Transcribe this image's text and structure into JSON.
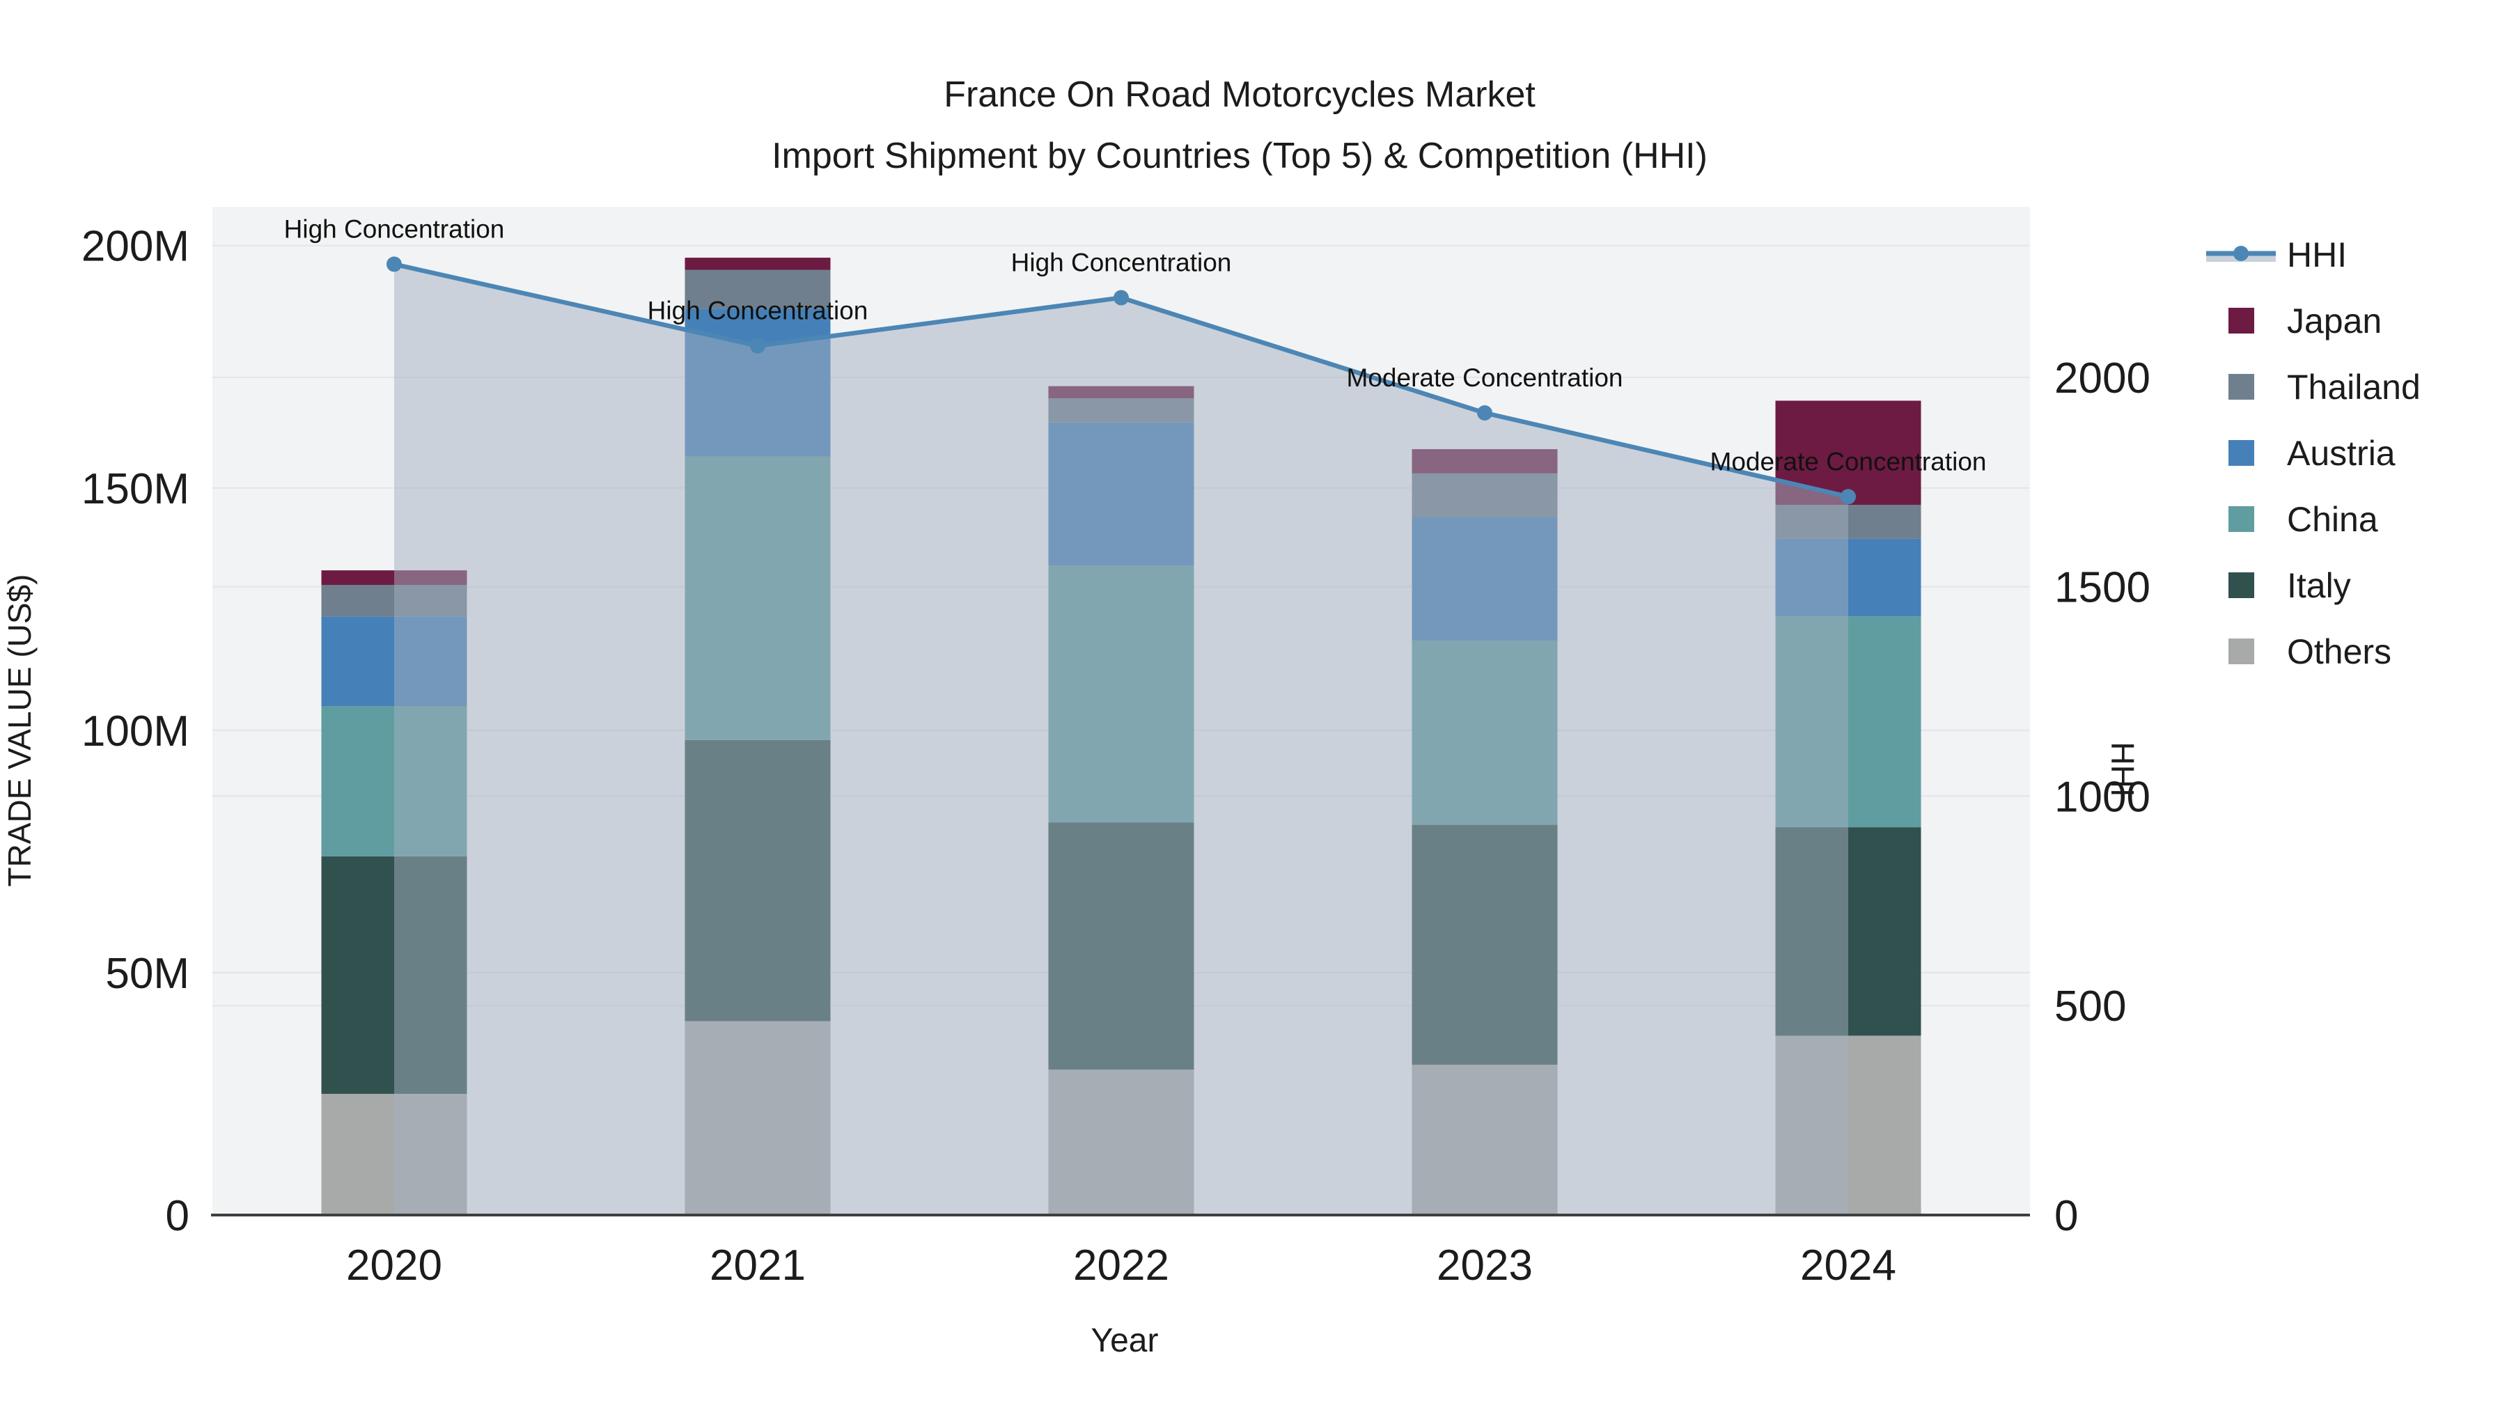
{
  "title": {
    "line1": "France On Road Motorcycles Market",
    "line2": "Import Shipment by Countries (Top 5) & Competition (HHI)"
  },
  "colors": {
    "plot_background": "#f2f3f4",
    "gridline": "#e3e5e8",
    "zeroline": "#3f3f3f",
    "text": "#1c1c1c",
    "hhi_line": "#4c86b5",
    "hhi_area_fill": "rgba(163,175,192,0.5)",
    "japan": "#6d1b42",
    "thailand": "#6f7f8d",
    "austria": "#4581b8",
    "china": "#5f9da0",
    "italy": "#31514e",
    "others": "#a8aaa9"
  },
  "chart_data": {
    "type": "combo: stacked bar (trade value) + line with area (HHI)",
    "categories": [
      "2020",
      "2021",
      "2022",
      "2023",
      "2024"
    ],
    "x_title": "Year",
    "y_left": {
      "title": "TRADE VALUE (US$)",
      "unit": "M US$",
      "tick_values": [
        0,
        50,
        100,
        150,
        200
      ],
      "tick_labels": [
        "0",
        "50M",
        "100M",
        "150M",
        "200M"
      ],
      "range": [
        0,
        208
      ]
    },
    "y_right": {
      "title": "HHI",
      "tick_values": [
        0,
        500,
        1000,
        1500,
        2000
      ],
      "tick_labels": [
        "0",
        "500",
        "1000",
        "1500",
        "2000"
      ],
      "range": [
        0,
        2407
      ]
    },
    "series": [
      {
        "name": "Others",
        "color_key": "others",
        "values": [
          25,
          40,
          30,
          31,
          37
        ]
      },
      {
        "name": "Italy",
        "color_key": "italy",
        "values": [
          49,
          58,
          51,
          49.5,
          43
        ]
      },
      {
        "name": "China",
        "color_key": "china",
        "values": [
          31,
          58.5,
          53,
          38,
          43.5
        ]
      },
      {
        "name": "Austria",
        "color_key": "austria",
        "values": [
          18.5,
          30.5,
          29.5,
          25.5,
          16
        ]
      },
      {
        "name": "Thailand",
        "color_key": "thailand",
        "values": [
          6.5,
          8,
          5,
          9,
          7
        ]
      },
      {
        "name": "Japan",
        "color_key": "japan",
        "values": [
          3,
          2.5,
          2.5,
          5,
          21.5
        ]
      }
    ],
    "bar_totals": [
      133,
      197.5,
      171,
      158,
      168
    ],
    "line_series": {
      "name": "HHI",
      "values": [
        2270,
        2075,
        2190,
        1915,
        1715
      ]
    },
    "annotations": [
      {
        "category": "2020",
        "text": "High Concentration"
      },
      {
        "category": "2021",
        "text": "High Concentration"
      },
      {
        "category": "2022",
        "text": "High Concentration"
      },
      {
        "category": "2023",
        "text": "Moderate Concentration"
      },
      {
        "category": "2024",
        "text": "Moderate Concentration"
      }
    ],
    "legend_position": "right",
    "grid_on": true
  },
  "legend": {
    "items": [
      {
        "label": "HHI",
        "type": "line",
        "color_key": "hhi_line"
      },
      {
        "label": "Japan",
        "type": "box",
        "color_key": "japan"
      },
      {
        "label": "Thailand",
        "type": "box",
        "color_key": "thailand"
      },
      {
        "label": "Austria",
        "type": "box",
        "color_key": "austria"
      },
      {
        "label": "China",
        "type": "box",
        "color_key": "china"
      },
      {
        "label": "Italy",
        "type": "box",
        "color_key": "italy"
      },
      {
        "label": "Others",
        "type": "box",
        "color_key": "others"
      }
    ]
  }
}
